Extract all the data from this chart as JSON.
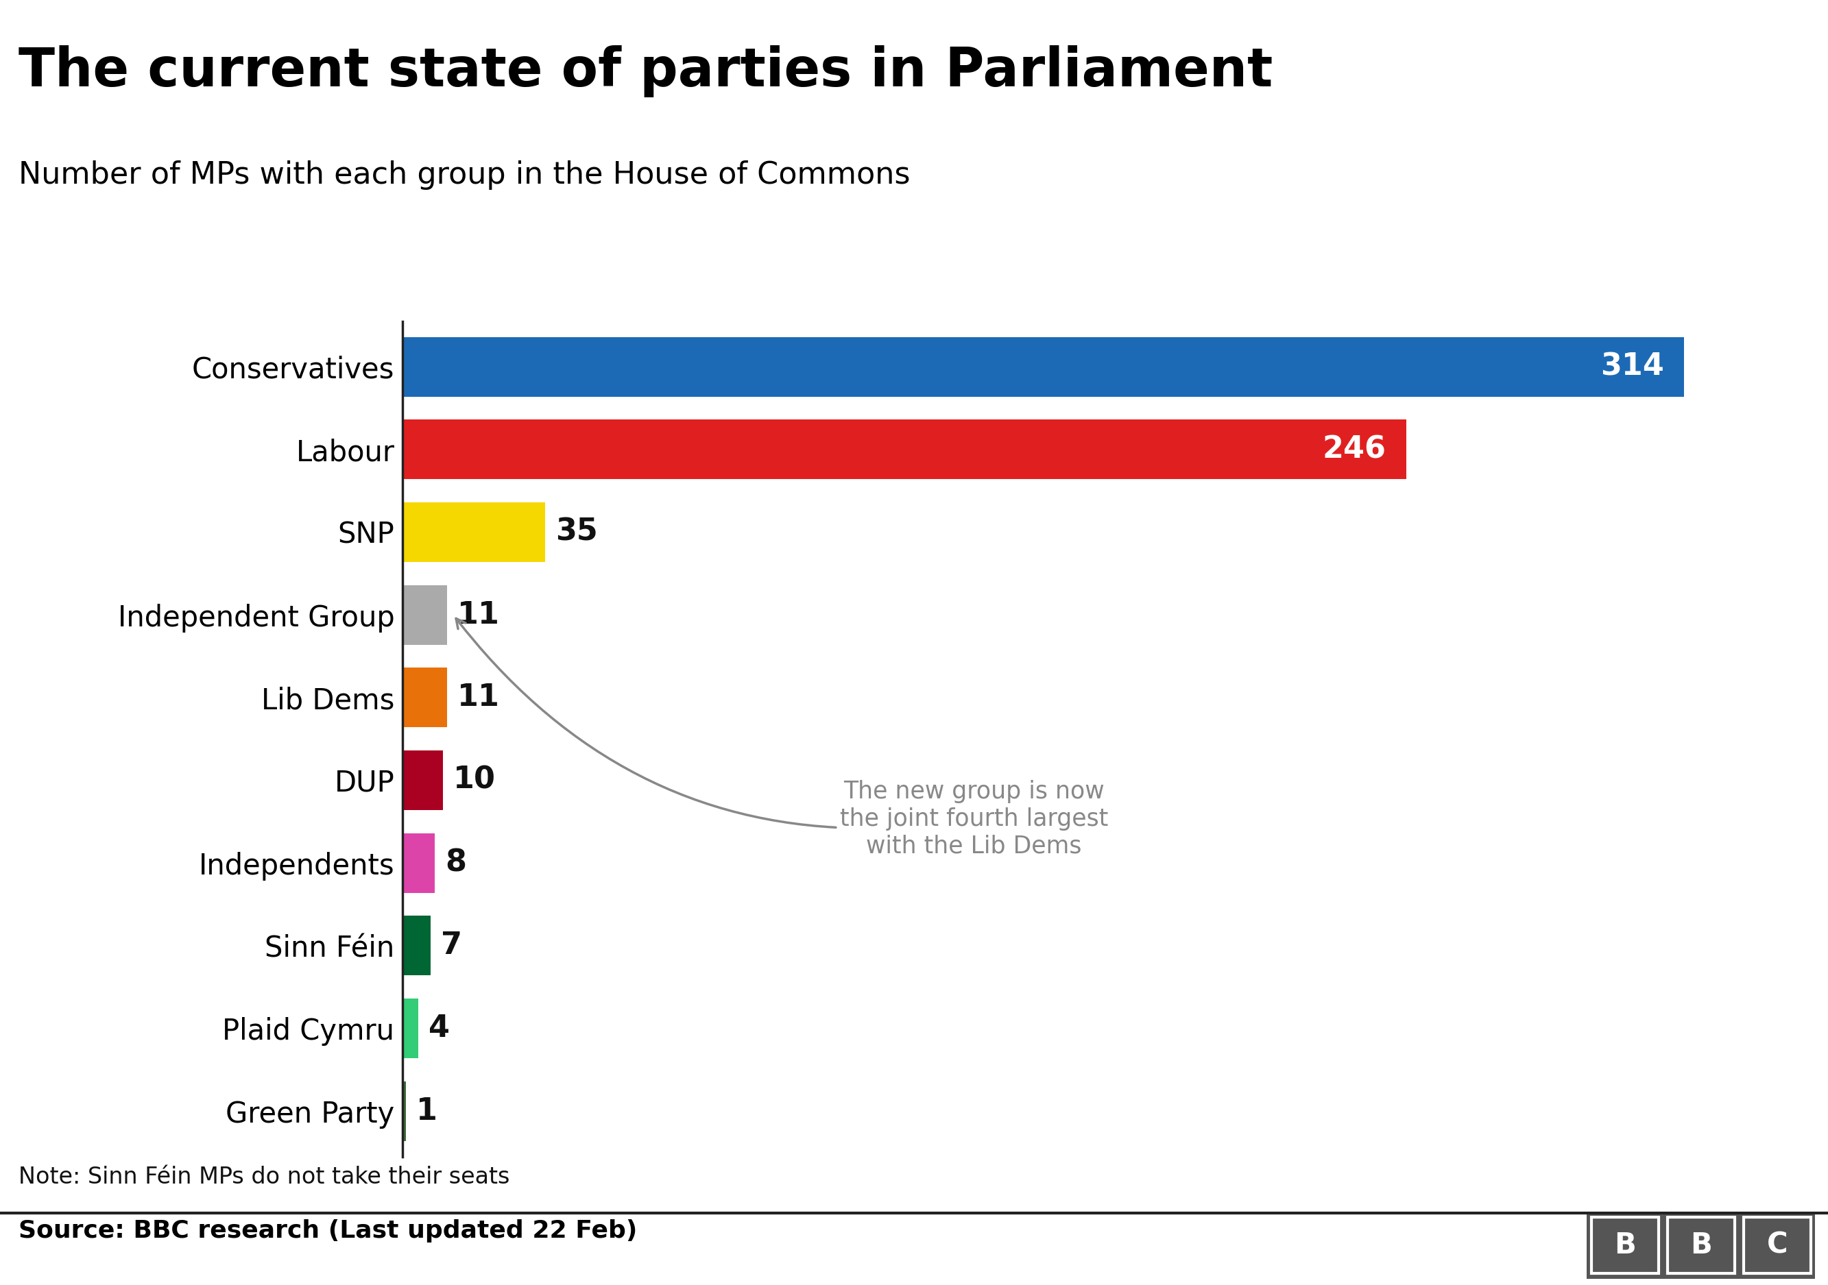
{
  "title": "The current state of parties in Parliament",
  "subtitle": "Number of MPs with each group in the House of Commons",
  "note": "Note: Sinn Féin MPs do not take their seats",
  "source": "Source: BBC research (Last updated 22 Feb)",
  "parties": [
    "Conservatives",
    "Labour",
    "SNP",
    "Independent Group",
    "Lib Dems",
    "DUP",
    "Independents",
    "Sinn Féin",
    "Plaid Cymru",
    "Green Party"
  ],
  "values": [
    314,
    246,
    35,
    11,
    11,
    10,
    8,
    7,
    4,
    1
  ],
  "colors": [
    "#1c6ab5",
    "#e02020",
    "#f5d800",
    "#aaaaaa",
    "#e8710a",
    "#aa0022",
    "#dd44aa",
    "#006633",
    "#33cc77",
    "#3b6b3b"
  ],
  "annotation_text": "The new group is now\nthe joint fourth largest\nwith the Lib Dems",
  "annotation_party_idx": 3,
  "value_label_colors": [
    "#ffffff",
    "#ffffff",
    "#000000",
    "#000000",
    "#000000",
    "#000000",
    "#000000",
    "#000000",
    "#000000",
    "#000000"
  ],
  "background_color": "#ffffff",
  "title_fontsize": 56,
  "subtitle_fontsize": 32,
  "label_fontsize": 30,
  "value_fontsize": 32,
  "note_fontsize": 24,
  "source_fontsize": 26,
  "bar_height": 0.72
}
